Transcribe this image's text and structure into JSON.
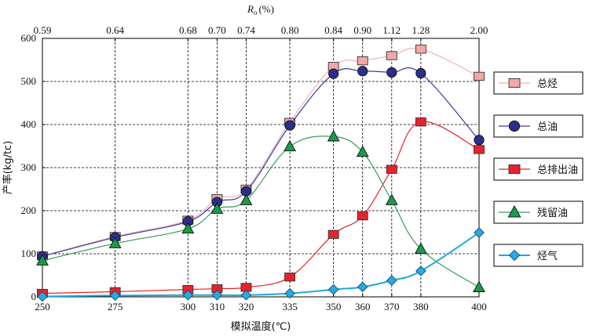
{
  "chart_data": {
    "type": "line",
    "xlabel": "模拟温度(℃)",
    "ylabel": "产率(kg/tc)",
    "top_axis": {
      "label_symbol": "R",
      "label_sub": "o",
      "label_unit": "(%)",
      "ticks": [
        {
          "x": 250,
          "label": "0.59"
        },
        {
          "x": 275,
          "label": "0.64"
        },
        {
          "x": 300,
          "label": "0.68"
        },
        {
          "x": 310,
          "label": "0.70"
        },
        {
          "x": 320,
          "label": "0.74"
        },
        {
          "x": 335,
          "label": "0.80"
        },
        {
          "x": 350,
          "label": "0.84"
        },
        {
          "x": 360,
          "label": "0.90"
        },
        {
          "x": 370,
          "label": "1.12"
        },
        {
          "x": 380,
          "label": "1.28"
        },
        {
          "x": 400,
          "label": "2.00"
        }
      ]
    },
    "x_ticks": [
      250,
      275,
      300,
      310,
      320,
      335,
      350,
      360,
      370,
      380,
      400
    ],
    "xlim": [
      250,
      400
    ],
    "y_ticks": [
      0,
      100,
      200,
      300,
      400,
      500,
      600
    ],
    "ylim": [
      0,
      600
    ],
    "grid": true,
    "legend_position": "right",
    "series": [
      {
        "name": "总烃",
        "marker": "square",
        "color": "#f4a7a7",
        "line_color": "#f0b4b4",
        "data": [
          [
            250,
            95
          ],
          [
            275,
            140
          ],
          [
            300,
            178
          ],
          [
            310,
            228
          ],
          [
            320,
            250
          ],
          [
            335,
            405
          ],
          [
            350,
            535
          ],
          [
            360,
            548
          ],
          [
            370,
            560
          ],
          [
            380,
            575
          ],
          [
            400,
            512
          ]
        ]
      },
      {
        "name": "总油",
        "marker": "circle",
        "color": "#2c2e8c",
        "line_color": "#3a3aa0",
        "data": [
          [
            250,
            94
          ],
          [
            275,
            138
          ],
          [
            300,
            175
          ],
          [
            310,
            220
          ],
          [
            320,
            245
          ],
          [
            335,
            398
          ],
          [
            350,
            518
          ],
          [
            360,
            524
          ],
          [
            370,
            521
          ],
          [
            380,
            519
          ],
          [
            400,
            364
          ]
        ]
      },
      {
        "name": "总排出油",
        "marker": "square",
        "color": "#e8222c",
        "line_color": "#e8222c",
        "data": [
          [
            250,
            8
          ],
          [
            275,
            12
          ],
          [
            300,
            17
          ],
          [
            310,
            19
          ],
          [
            320,
            22
          ],
          [
            335,
            46
          ],
          [
            350,
            145
          ],
          [
            360,
            188
          ],
          [
            370,
            296
          ],
          [
            380,
            406
          ],
          [
            400,
            342
          ]
        ]
      },
      {
        "name": "残留油",
        "marker": "triangle",
        "color": "#1a9a4a",
        "line_color": "#3a9a5a",
        "data": [
          [
            250,
            84
          ],
          [
            275,
            124
          ],
          [
            300,
            158
          ],
          [
            310,
            204
          ],
          [
            320,
            224
          ],
          [
            335,
            349
          ],
          [
            350,
            372
          ],
          [
            360,
            336
          ],
          [
            370,
            224
          ],
          [
            380,
            111
          ],
          [
            400,
            22
          ]
        ]
      },
      {
        "name": "烃气",
        "marker": "diamond",
        "color": "#29a9e0",
        "line_color": "#1fa8d8",
        "data": [
          [
            250,
            1
          ],
          [
            275,
            3
          ],
          [
            300,
            4
          ],
          [
            310,
            4
          ],
          [
            320,
            4
          ],
          [
            335,
            8
          ],
          [
            350,
            17
          ],
          [
            360,
            23
          ],
          [
            370,
            38
          ],
          [
            380,
            60
          ],
          [
            400,
            149
          ]
        ]
      }
    ]
  }
}
